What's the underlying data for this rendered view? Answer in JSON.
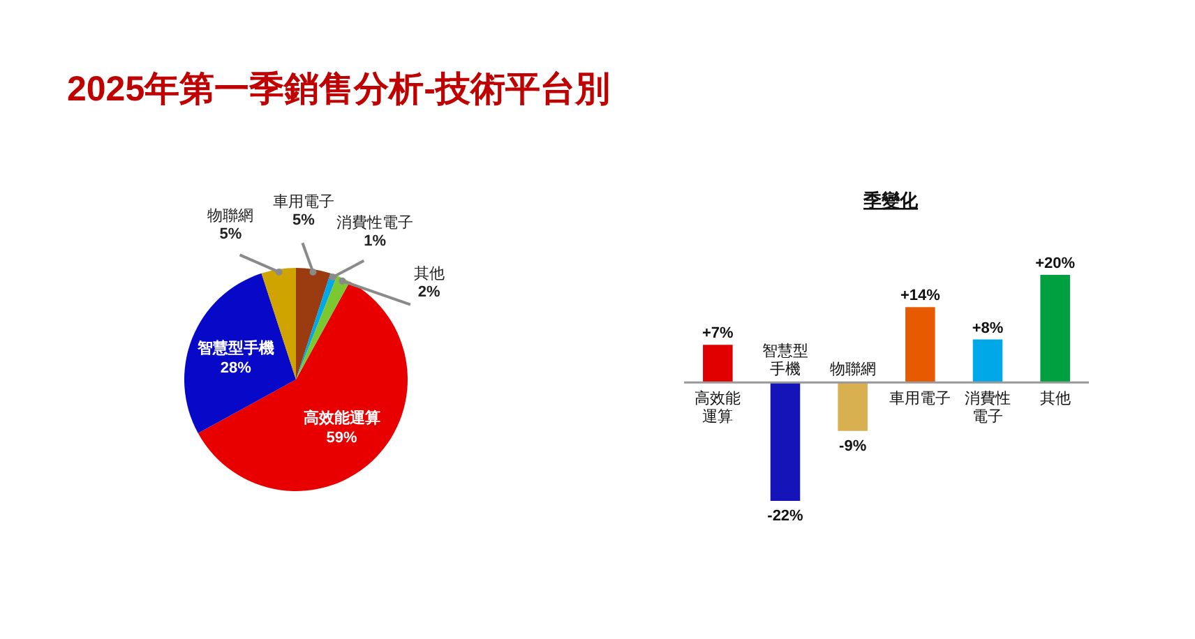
{
  "chart_data": [
    {
      "type": "pie",
      "title": "2025年第一季銷售分析-技術平台別",
      "categories": [
        "高效能運算",
        "智慧型手機",
        "物聯網",
        "車用電子",
        "消費性電子",
        "其他"
      ],
      "values": [
        59,
        28,
        5,
        5,
        1,
        2
      ],
      "colors": [
        "#e80000",
        "#0808c8",
        "#d0a400",
        "#9a3c10",
        "#00a8e8",
        "#7cc830"
      ],
      "value_labels": [
        "59%",
        "28%",
        "5%",
        "5%",
        "1%",
        "2%"
      ]
    },
    {
      "type": "bar",
      "title": "季變化",
      "categories": [
        "高效能運算",
        "智慧型手機",
        "物聯網",
        "車用電子",
        "消費性電子",
        "其他"
      ],
      "values": [
        7,
        -22,
        -9,
        14,
        8,
        20
      ],
      "colors": [
        "#e00000",
        "#1414b8",
        "#d8b050",
        "#e85a00",
        "#00a8e8",
        "#00a040"
      ],
      "value_labels": [
        "+7%",
        "-22%",
        "-9%",
        "+14%",
        "+8%",
        "+20%"
      ]
    }
  ]
}
